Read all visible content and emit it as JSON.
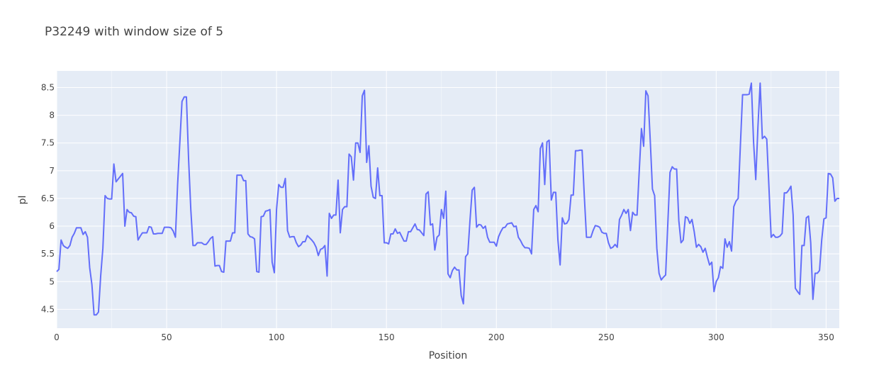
{
  "chart_data": {
    "type": "line",
    "title": "P32249 with window size of 5",
    "xlabel": "Position",
    "ylabel": "pI",
    "xlim": [
      0,
      356
    ],
    "ylim": [
      4.16,
      8.8
    ],
    "x_ticks": [
      0,
      50,
      100,
      150,
      200,
      250,
      300,
      350
    ],
    "y_ticks": [
      4.5,
      5,
      5.5,
      6,
      6.5,
      7,
      7.5,
      8,
      8.5
    ],
    "x_tick_labels": [
      "0",
      "50",
      "100",
      "150",
      "200",
      "250",
      "300",
      "350"
    ],
    "y_tick_labels": [
      "4.5",
      "5",
      "5.5",
      "6",
      "6.5",
      "7",
      "7.5",
      "8",
      "8.5"
    ],
    "grid": true,
    "line_color": "#636efa",
    "plot_background": "#e5ecf6",
    "series": [
      {
        "x": [
          0,
          1,
          2,
          3,
          4,
          5,
          6,
          7,
          8,
          9,
          10,
          11,
          12,
          13,
          14,
          15,
          16,
          17,
          18,
          19,
          20,
          21,
          22,
          23,
          24,
          25,
          26,
          27,
          28,
          29,
          30,
          31,
          32,
          33,
          34,
          35,
          36,
          37,
          38,
          39,
          40,
          41,
          42,
          43,
          44,
          45,
          46,
          47,
          48,
          49,
          50,
          51,
          52,
          53,
          54,
          55,
          56,
          57,
          58,
          59,
          60,
          61,
          62,
          63,
          64,
          65,
          66,
          67,
          68,
          69,
          70,
          71,
          72,
          73,
          74,
          75,
          76,
          77,
          78,
          79,
          80,
          81,
          82,
          83,
          84,
          85,
          86,
          87,
          88,
          89,
          90,
          91,
          92,
          93,
          94,
          95,
          96,
          97,
          98,
          99,
          100,
          101,
          102,
          103,
          104,
          105,
          106,
          107,
          108,
          109,
          110,
          111,
          112,
          113,
          114,
          115,
          116,
          117,
          118,
          119,
          120,
          121,
          122,
          123,
          124,
          125,
          126,
          127,
          128,
          129,
          130,
          131,
          132,
          133,
          134,
          135,
          136,
          137,
          138,
          139,
          140,
          141,
          142,
          143,
          144,
          145,
          146,
          147,
          148,
          149,
          150,
          151,
          152,
          153,
          154,
          155,
          156,
          157,
          158,
          159,
          160,
          161,
          162,
          163,
          164,
          165,
          166,
          167,
          168,
          169,
          170,
          171,
          172,
          173,
          174,
          175,
          176,
          177,
          178,
          179,
          180,
          181,
          182,
          183,
          184,
          185,
          186,
          187,
          188,
          189,
          190,
          191,
          192,
          193,
          194,
          195,
          196,
          197,
          198,
          199,
          200,
          201,
          202,
          203,
          204,
          205,
          206,
          207,
          208,
          209,
          210,
          211,
          212,
          213,
          214,
          215,
          216,
          217,
          218,
          219,
          220,
          221,
          222,
          223,
          224,
          225,
          226,
          227,
          228,
          229,
          230,
          231,
          232,
          233,
          234,
          235,
          236,
          237,
          238,
          239,
          240,
          241,
          242,
          243,
          244,
          245,
          246,
          247,
          248,
          249,
          250,
          251,
          252,
          253,
          254,
          255,
          256,
          257,
          258,
          259,
          260,
          261,
          262,
          263,
          264,
          265,
          266,
          267,
          268,
          269,
          270,
          271,
          272,
          273,
          274,
          275,
          276,
          277,
          278,
          279,
          280,
          281,
          282,
          283,
          284,
          285,
          286,
          287,
          288,
          289,
          290,
          291,
          292,
          293,
          294,
          295,
          296,
          297,
          298,
          299,
          300,
          301,
          302,
          303,
          304,
          305,
          306,
          307,
          308,
          309,
          310,
          311,
          312,
          313,
          314,
          315,
          316,
          317,
          318,
          319,
          320,
          321,
          322,
          323,
          324,
          325,
          326,
          327,
          328,
          329,
          330,
          331,
          332,
          333,
          334,
          335,
          336,
          337,
          338,
          339,
          340,
          341,
          342,
          343,
          344,
          345,
          346,
          347,
          348,
          349,
          350,
          351,
          352,
          353,
          354,
          355,
          356
        ],
        "y": [
          5.18,
          5.22,
          5.75,
          5.65,
          5.62,
          5.6,
          5.65,
          5.8,
          5.87,
          5.97,
          5.97,
          5.97,
          5.85,
          5.9,
          5.8,
          5.25,
          4.95,
          4.4,
          4.4,
          4.45,
          5.1,
          5.6,
          6.55,
          6.5,
          6.49,
          6.49,
          7.12,
          6.8,
          6.85,
          6.9,
          6.95,
          6.0,
          6.3,
          6.25,
          6.24,
          6.18,
          6.17,
          5.75,
          5.82,
          5.88,
          5.88,
          5.88,
          5.99,
          5.98,
          5.86,
          5.86,
          5.87,
          5.87,
          5.87,
          5.98,
          5.98,
          5.98,
          5.97,
          5.91,
          5.8,
          6.75,
          7.5,
          8.25,
          8.33,
          8.33,
          7.2,
          6.3,
          5.65,
          5.65,
          5.7,
          5.7,
          5.7,
          5.67,
          5.67,
          5.72,
          5.78,
          5.81,
          5.28,
          5.29,
          5.29,
          5.18,
          5.17,
          5.73,
          5.73,
          5.73,
          5.88,
          5.88,
          6.92,
          6.92,
          6.92,
          6.82,
          6.82,
          5.86,
          5.81,
          5.8,
          5.77,
          5.18,
          5.17,
          6.17,
          6.18,
          6.27,
          6.28,
          6.3,
          5.35,
          5.16,
          6.3,
          6.75,
          6.7,
          6.7,
          6.86,
          5.92,
          5.8,
          5.81,
          5.81,
          5.7,
          5.63,
          5.66,
          5.72,
          5.72,
          5.83,
          5.79,
          5.75,
          5.7,
          5.62,
          5.47,
          5.58,
          5.6,
          5.65,
          5.1,
          6.23,
          6.14,
          6.2,
          6.2,
          6.83,
          5.88,
          6.3,
          6.35,
          6.35,
          7.3,
          7.25,
          6.83,
          7.5,
          7.5,
          7.33,
          8.35,
          8.45,
          7.15,
          7.45,
          6.72,
          6.52,
          6.5,
          7.05,
          6.55,
          6.55,
          5.7,
          5.7,
          5.68,
          5.86,
          5.86,
          5.95,
          5.87,
          5.89,
          5.81,
          5.73,
          5.73,
          5.9,
          5.9,
          5.97,
          6.04,
          5.94,
          5.93,
          5.88,
          5.83,
          6.58,
          6.62,
          6.02,
          6.04,
          5.57,
          5.8,
          5.84,
          6.3,
          6.14,
          6.63,
          5.14,
          5.07,
          5.2,
          5.26,
          5.21,
          5.21,
          4.75,
          4.6,
          5.45,
          5.5,
          6.1,
          6.65,
          6.7,
          5.98,
          6.03,
          6.02,
          5.96,
          6.0,
          5.8,
          5.71,
          5.71,
          5.71,
          5.64,
          5.81,
          5.9,
          5.97,
          5.98,
          6.04,
          6.05,
          6.06,
          5.99,
          6.0,
          5.8,
          5.74,
          5.66,
          5.61,
          5.61,
          5.6,
          5.5,
          6.3,
          6.37,
          6.26,
          7.4,
          7.5,
          6.75,
          7.52,
          7.55,
          6.47,
          6.61,
          6.61,
          5.75,
          5.3,
          6.15,
          6.04,
          6.05,
          6.12,
          6.56,
          6.56,
          7.36,
          7.36,
          7.37,
          7.37,
          6.55,
          5.8,
          5.8,
          5.8,
          5.92,
          6.01,
          6.0,
          5.98,
          5.89,
          5.87,
          5.87,
          5.7,
          5.6,
          5.62,
          5.67,
          5.62,
          6.12,
          6.2,
          6.3,
          6.23,
          6.3,
          5.92,
          6.25,
          6.2,
          6.2,
          7.0,
          7.76,
          7.44,
          8.44,
          8.35,
          7.55,
          6.67,
          6.55,
          5.6,
          5.15,
          5.03,
          5.08,
          5.12,
          6.05,
          6.97,
          7.07,
          7.03,
          7.03,
          6.1,
          5.7,
          5.75,
          6.17,
          6.15,
          6.05,
          6.12,
          5.9,
          5.62,
          5.67,
          5.63,
          5.53,
          5.6,
          5.44,
          5.3,
          5.35,
          4.82,
          5.0,
          5.07,
          5.27,
          5.24,
          5.77,
          5.62,
          5.72,
          5.55,
          6.35,
          6.45,
          6.5,
          7.45,
          8.37,
          8.37,
          8.37,
          8.38,
          8.58,
          7.52,
          6.84,
          7.8,
          8.58,
          7.58,
          7.62,
          7.57,
          6.7,
          5.8,
          5.85,
          5.8,
          5.8,
          5.82,
          5.87,
          6.6,
          6.6,
          6.65,
          6.72,
          6.2,
          4.88,
          4.82,
          4.77,
          5.65,
          5.65,
          6.15,
          6.18,
          5.7,
          4.68,
          5.15,
          5.15,
          5.2,
          5.75,
          6.13,
          6.15,
          6.95,
          6.94,
          6.87,
          6.45,
          6.5,
          6.5
        ]
      }
    ]
  }
}
